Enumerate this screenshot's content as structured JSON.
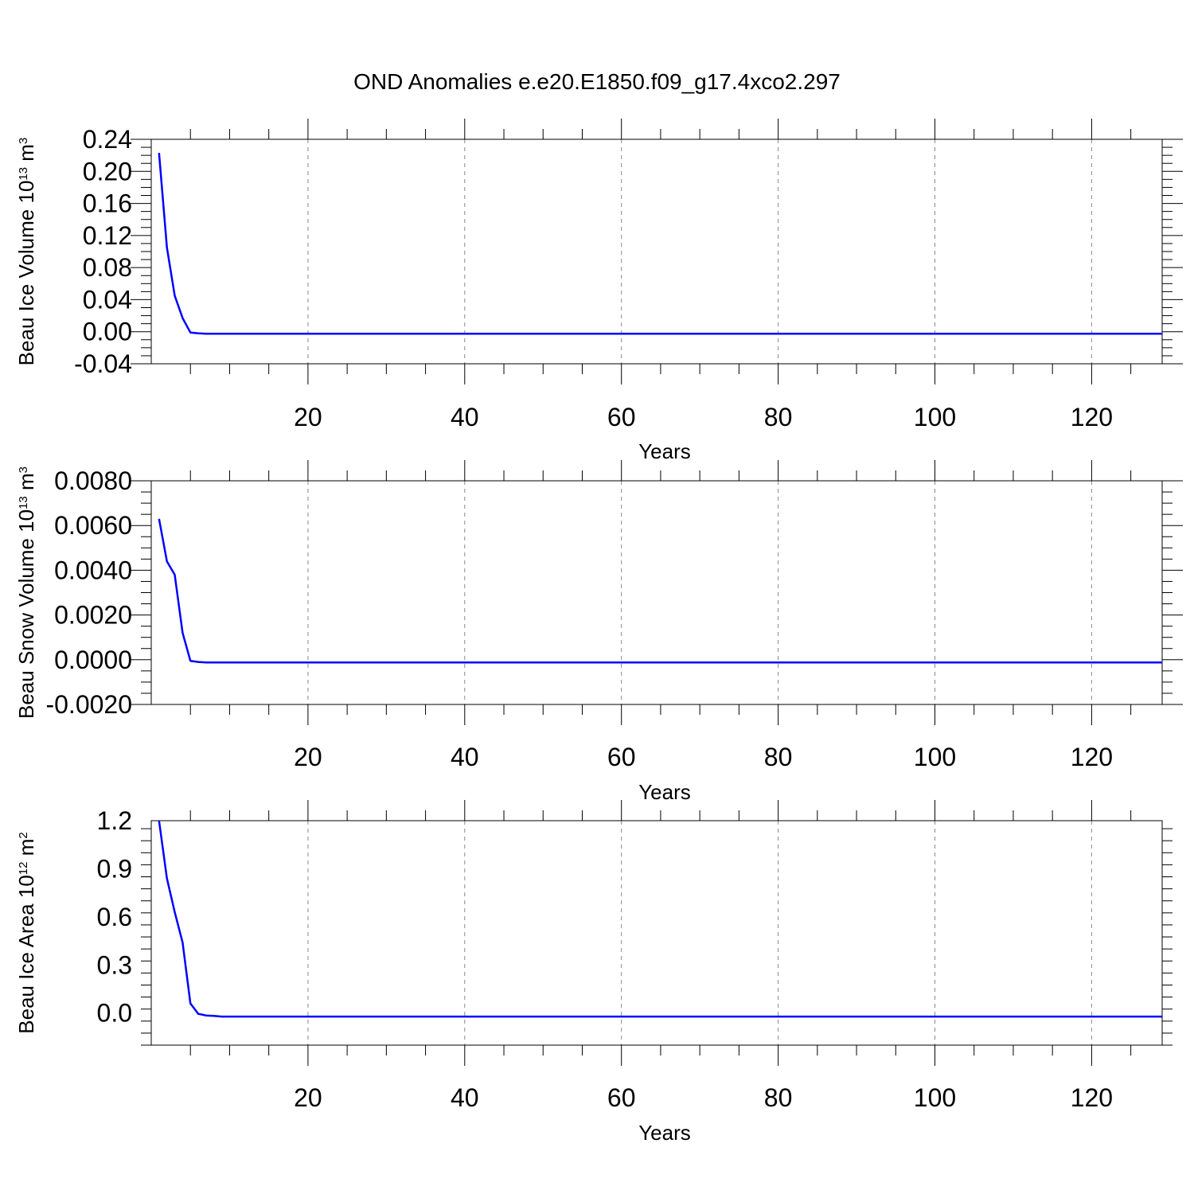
{
  "title": "OND Anomalies e.e20.E1850.f09_g17.4xco2.297",
  "colors": {
    "line": "#0000ff",
    "axis": "#000000",
    "grid": "#888888"
  },
  "chart_data": [
    {
      "type": "line",
      "xlabel": "Years",
      "ylabel_main": "Beau Ice Volume 10",
      "ylabel_exp": "13",
      "ylabel_unit": " m",
      "ylabel_unit_exp": "3",
      "xlim": [
        0,
        129
      ],
      "ylim": [
        -0.04,
        0.24
      ],
      "x_ticks": [
        20,
        40,
        60,
        80,
        100,
        120
      ],
      "y_ticks": [
        "0.24",
        "0.20",
        "0.16",
        "0.12",
        "0.08",
        "0.04",
        "0.00",
        "-0.04"
      ],
      "grid": "vertical dashed at labeled x ticks",
      "series": [
        {
          "x": [
            1,
            2,
            3,
            4,
            5,
            6,
            7,
            8,
            10,
            15,
            20,
            40,
            60,
            80,
            100,
            120,
            129
          ],
          "y": [
            0.223,
            0.105,
            0.045,
            0.017,
            -0.001,
            -0.002,
            -0.0025,
            -0.0025,
            -0.0025,
            -0.0025,
            -0.0025,
            -0.0025,
            -0.0025,
            -0.0025,
            -0.0025,
            -0.0025,
            -0.0025
          ]
        }
      ]
    },
    {
      "type": "line",
      "xlabel": "Years",
      "ylabel_main": "Beau Snow Volume 10",
      "ylabel_exp": "13",
      "ylabel_unit": " m",
      "ylabel_unit_exp": "3",
      "xlim": [
        0,
        129
      ],
      "ylim": [
        -0.002,
        0.008
      ],
      "x_ticks": [
        20,
        40,
        60,
        80,
        100,
        120
      ],
      "y_ticks": [
        "0.0080",
        "0.0060",
        "0.0040",
        "0.0020",
        "0.0000",
        "-0.0020"
      ],
      "grid": "vertical dashed at labeled x ticks",
      "series": [
        {
          "x": [
            1,
            2,
            3,
            4,
            5,
            6,
            7,
            8,
            10,
            15,
            20,
            40,
            60,
            80,
            100,
            120,
            129
          ],
          "y": [
            0.0063,
            0.0044,
            0.0038,
            0.0012,
            -5e-05,
            -0.0001,
            -0.00012,
            -0.00012,
            -0.00012,
            -0.00012,
            -0.00012,
            -0.00012,
            -0.00012,
            -0.00012,
            -0.00012,
            -0.00012,
            -0.00012
          ]
        }
      ]
    },
    {
      "type": "line",
      "xlabel": "Years",
      "ylabel_main": "Beau Ice Area 10",
      "ylabel_exp": "12",
      "ylabel_unit": " m",
      "ylabel_unit_exp": "2",
      "xlim": [
        0,
        129
      ],
      "ylim": [
        -0.2,
        1.2
      ],
      "x_ticks": [
        20,
        40,
        60,
        80,
        100,
        120
      ],
      "y_ticks": [
        "1.2",
        "0.9",
        "0.6",
        "0.3",
        "0.0"
      ],
      "y_tick_values": [
        1.2,
        0.9,
        0.6,
        0.3,
        0.0
      ],
      "grid": "vertical dashed at labeled x ticks",
      "series": [
        {
          "x": [
            1,
            2,
            3,
            4,
            5,
            6,
            7,
            8,
            9,
            10,
            15,
            20,
            40,
            60,
            80,
            100,
            120,
            129
          ],
          "y": [
            1.2,
            0.84,
            0.63,
            0.44,
            0.06,
            -0.005,
            -0.015,
            -0.018,
            -0.022,
            -0.022,
            -0.022,
            -0.022,
            -0.022,
            -0.022,
            -0.022,
            -0.022,
            -0.022,
            -0.022
          ]
        }
      ]
    }
  ]
}
